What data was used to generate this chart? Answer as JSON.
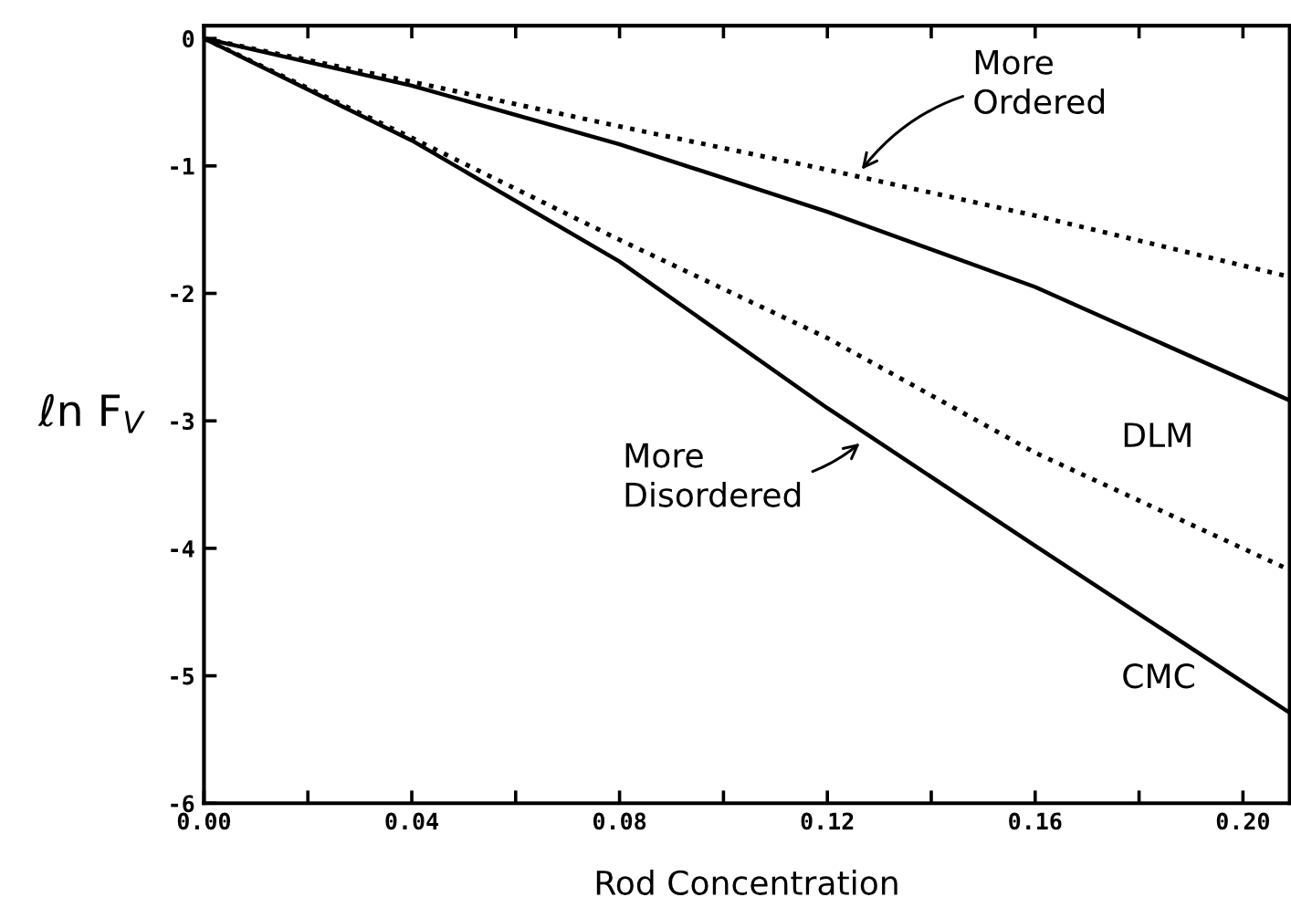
{
  "chart_data": {
    "type": "line",
    "xlabel": "Rod Concentration",
    "ylabel": "ℓn F$_{V}$",
    "xlim": [
      0,
      0.209
    ],
    "ylim": [
      -6,
      0.1
    ],
    "xticks": [
      {
        "value": 0,
        "label": "0.00"
      },
      {
        "value": 0.02,
        "label": null
      },
      {
        "value": 0.04,
        "label": "0.04"
      },
      {
        "value": 0.06,
        "label": null
      },
      {
        "value": 0.08,
        "label": "0.08"
      },
      {
        "value": 0.1,
        "label": null
      },
      {
        "value": 0.12,
        "label": "0.12"
      },
      {
        "value": 0.14,
        "label": null
      },
      {
        "value": 0.16,
        "label": "0.16"
      },
      {
        "value": 0.18,
        "label": null
      },
      {
        "value": 0.2,
        "label": "0.20"
      }
    ],
    "yticks": [
      -6,
      -5,
      -4,
      -3,
      -2,
      -1,
      0
    ],
    "grid": false,
    "legend": false,
    "marker": "none",
    "series": [
      {
        "color": "#000000",
        "line_style": "dotted",
        "x": [
          0,
          0.04,
          0.08,
          0.12,
          0.16,
          0.209
        ],
        "values": [
          0,
          -0.34,
          -0.69,
          -1.03,
          -1.39,
          -1.87
        ]
      },
      {
        "color": "#000000",
        "line_style": "solid",
        "x": [
          0,
          0.04,
          0.08,
          0.12,
          0.16,
          0.209
        ],
        "values": [
          0,
          -0.37,
          -0.83,
          -1.36,
          -1.95,
          -2.84
        ]
      },
      {
        "color": "#000000",
        "line_style": "dotted",
        "x": [
          0,
          0.04,
          0.08,
          0.12,
          0.16,
          0.209
        ],
        "values": [
          0,
          -0.78,
          -1.58,
          -2.35,
          -3.25,
          -4.17
        ]
      },
      {
        "color": "#000000",
        "line_style": "solid",
        "x": [
          0,
          0.04,
          0.08,
          0.12,
          0.16,
          0.209
        ],
        "values": [
          0,
          -0.8,
          -1.75,
          -2.9,
          -3.98,
          -5.29
        ]
      }
    ],
    "annotations": [
      {
        "text": "More\nOrdered",
        "x": 0.126,
        "y": -1.06
      },
      {
        "text": "More\nDisordered",
        "x": 0.127,
        "y": -3.15
      },
      "DLM",
      "CMC"
    ]
  }
}
